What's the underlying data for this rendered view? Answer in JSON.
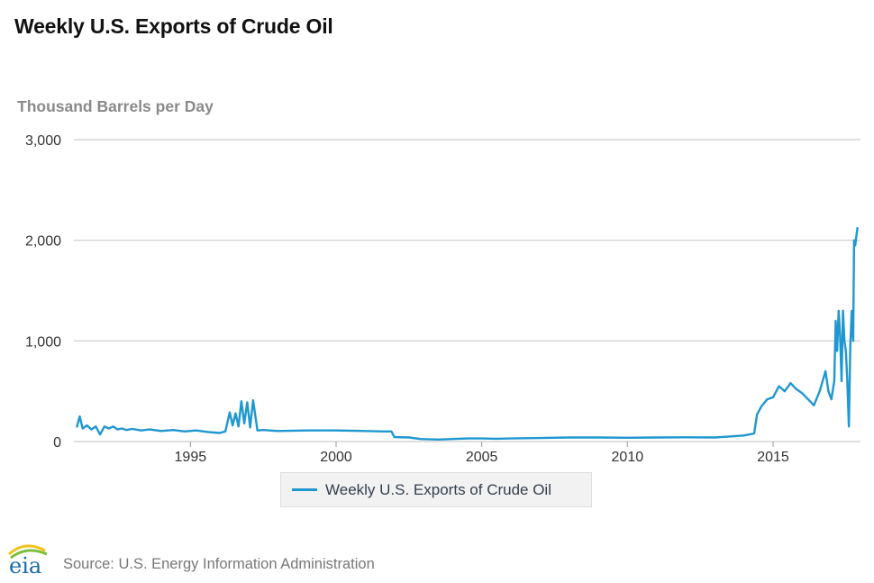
{
  "title": "Weekly U.S. Exports of Crude Oil",
  "units": "Thousand Barrels per Day",
  "legend": {
    "label": "Weekly U.S. Exports of Crude Oil"
  },
  "source": "Source: U.S. Energy Information Administration",
  "logo_text": "eia",
  "colors": {
    "series": "#1f97d0",
    "grid": "#cccccc",
    "logo_blue": "#1a6aa6",
    "logo_green": "#7cbf3a",
    "logo_yellow": "#f2c21b"
  },
  "chart_data": {
    "type": "line",
    "title": "Weekly U.S. Exports of Crude Oil",
    "ylabel": "Thousand Barrels per Day",
    "xlabel": "",
    "ylim": [
      0,
      3000
    ],
    "xlim": [
      1991.0,
      2018.0
    ],
    "grid": true,
    "legend_position": "bottom",
    "y_ticks": [
      {
        "value": 0,
        "label": "0"
      },
      {
        "value": 1000,
        "label": "1,000"
      },
      {
        "value": 2000,
        "label": "2,000"
      },
      {
        "value": 3000,
        "label": "3,000"
      }
    ],
    "x_ticks": [
      {
        "value": 1995,
        "label": "1995"
      },
      {
        "value": 2000,
        "label": "2000"
      },
      {
        "value": 2005,
        "label": "2005"
      },
      {
        "value": 2010,
        "label": "2010"
      },
      {
        "value": 2015,
        "label": "2015"
      }
    ],
    "series": [
      {
        "name": "Weekly U.S. Exports of Crude Oil",
        "x": [
          1991.1,
          1991.2,
          1991.3,
          1991.45,
          1991.6,
          1991.75,
          1991.9,
          1992.05,
          1992.2,
          1992.35,
          1992.5,
          1992.65,
          1992.8,
          1993.0,
          1993.3,
          1993.6,
          1994.0,
          1994.4,
          1994.8,
          1995.2,
          1995.6,
          1996.0,
          1996.2,
          1996.35,
          1996.45,
          1996.55,
          1996.65,
          1996.75,
          1996.85,
          1996.95,
          1997.05,
          1997.15,
          1997.3,
          1997.5,
          1998.0,
          1999.0,
          2000.0,
          2001.0,
          2001.6,
          2001.9,
          2002.0,
          2002.5,
          2002.9,
          2003.5,
          2004.0,
          2004.5,
          2005.0,
          2005.5,
          2006.0,
          2007.0,
          2008.0,
          2009.0,
          2010.0,
          2011.0,
          2012.0,
          2013.0,
          2013.5,
          2014.0,
          2014.35,
          2014.45,
          2014.6,
          2014.8,
          2015.0,
          2015.2,
          2015.4,
          2015.6,
          2015.8,
          2016.0,
          2016.2,
          2016.4,
          2016.6,
          2016.8,
          2016.9,
          2017.0,
          2017.1,
          2017.15,
          2017.2,
          2017.25,
          2017.3,
          2017.35,
          2017.4,
          2017.45,
          2017.5,
          2017.55,
          2017.6,
          2017.65,
          2017.7,
          2017.75,
          2017.78,
          2017.82,
          2017.86,
          2017.9
        ],
        "values": [
          140,
          250,
          130,
          160,
          120,
          150,
          70,
          150,
          130,
          150,
          120,
          130,
          115,
          125,
          110,
          120,
          105,
          115,
          100,
          110,
          95,
          85,
          100,
          290,
          160,
          280,
          150,
          400,
          180,
          390,
          140,
          410,
          110,
          115,
          105,
          110,
          110,
          105,
          100,
          100,
          45,
          40,
          25,
          20,
          25,
          30,
          30,
          28,
          30,
          35,
          40,
          40,
          38,
          40,
          42,
          40,
          50,
          60,
          80,
          270,
          350,
          420,
          440,
          550,
          500,
          580,
          520,
          480,
          420,
          360,
          500,
          700,
          500,
          420,
          600,
          1200,
          900,
          1300,
          1050,
          600,
          1300,
          1000,
          900,
          600,
          150,
          950,
          1300,
          1000,
          2000,
          1950,
          2050,
          2130
        ]
      }
    ]
  }
}
